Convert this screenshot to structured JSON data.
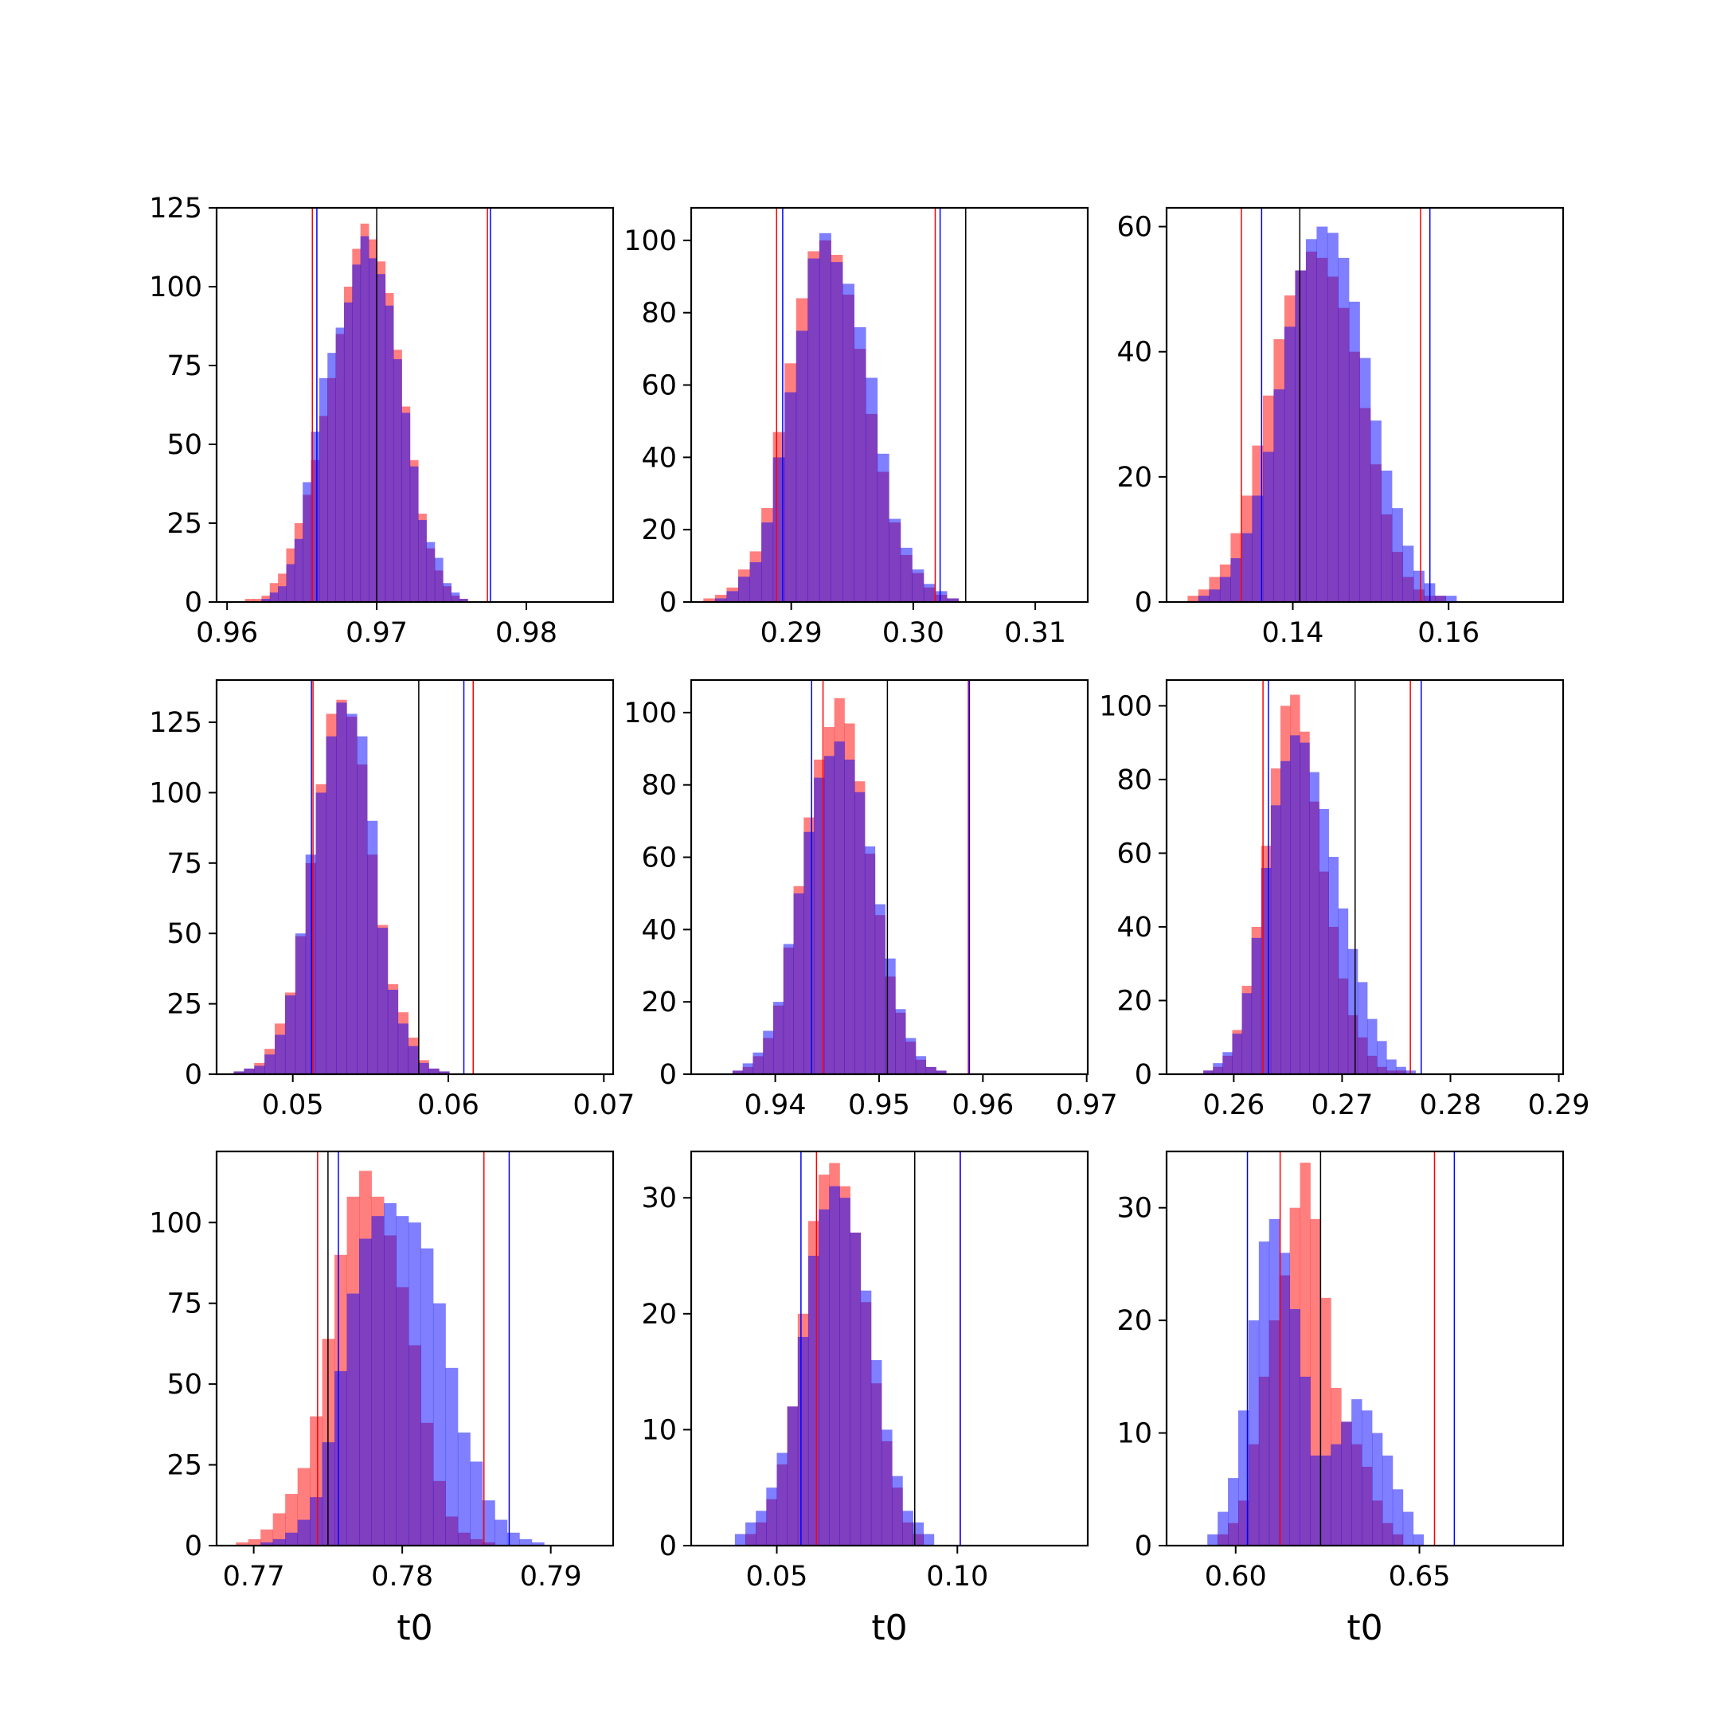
{
  "figure": {
    "background": "#ffffff",
    "colors": {
      "red_series": "#ff0000",
      "blue_series": "#0000ff",
      "overlap_purple": "#7f3fbf",
      "reference_line": "#000000"
    },
    "legend": "none",
    "grid": false
  },
  "chart_data": [
    {
      "type": "bar",
      "panel": "row1-col1",
      "xlabel": "",
      "ylabel": "",
      "xlim": [
        0.9593,
        0.9858
      ],
      "ylim": [
        0,
        125
      ],
      "xticks": [
        0.96,
        0.97,
        0.98
      ],
      "xtick_labels": [
        "0.96",
        "0.97",
        "0.98"
      ],
      "yticks": [
        0,
        25,
        50,
        75,
        100,
        125
      ],
      "ytick_labels": [
        "0",
        "25",
        "50",
        "75",
        "100",
        "125"
      ],
      "bins": {
        "start": 0.9612,
        "width": 0.000551
      },
      "series": [
        {
          "color": "red",
          "values": [
            1,
            1,
            2,
            6,
            9,
            17,
            25,
            34,
            45,
            59,
            71,
            85,
            100,
            112,
            120,
            115,
            108,
            98,
            80,
            62,
            45,
            28,
            17,
            10,
            5,
            2,
            1
          ]
        },
        {
          "color": "blue",
          "values": [
            0,
            0,
            1,
            3,
            5,
            12,
            20,
            38,
            54,
            71,
            79,
            87,
            95,
            107,
            116,
            109,
            104,
            94,
            77,
            60,
            43,
            26,
            19,
            14,
            6,
            3,
            1
          ]
        }
      ],
      "vlines": [
        {
          "color": "red",
          "x": 0.9657
        },
        {
          "color": "blue",
          "x": 0.966
        },
        {
          "color": "black",
          "x": 0.97
        },
        {
          "color": "red",
          "x": 0.9774
        },
        {
          "color": "blue",
          "x": 0.9776
        }
      ]
    },
    {
      "type": "bar",
      "panel": "row1-col2",
      "xlabel": "",
      "ylabel": "",
      "xlim": [
        0.2818,
        0.3143
      ],
      "ylim": [
        0,
        109
      ],
      "xticks": [
        0.29,
        0.3,
        0.31
      ],
      "xtick_labels": [
        "0.29",
        "0.30",
        "0.31"
      ],
      "yticks": [
        0,
        20,
        40,
        60,
        80,
        100
      ],
      "ytick_labels": [
        "0",
        "20",
        "40",
        "60",
        "80",
        "100"
      ],
      "bins": {
        "start": 0.2828,
        "width": 0.00095
      },
      "series": [
        {
          "color": "red",
          "values": [
            1,
            2,
            4,
            9,
            14,
            26,
            47,
            66,
            84,
            97,
            100,
            96,
            85,
            70,
            52,
            36,
            22,
            13,
            8,
            4,
            2,
            1,
            0
          ]
        },
        {
          "color": "blue",
          "values": [
            0,
            1,
            3,
            7,
            11,
            22,
            40,
            58,
            75,
            95,
            102,
            94,
            88,
            76,
            62,
            41,
            23,
            15,
            9,
            5,
            3,
            1,
            0
          ]
        }
      ],
      "vlines": [
        {
          "color": "red",
          "x": 0.2888
        },
        {
          "color": "blue",
          "x": 0.2893
        },
        {
          "color": "red",
          "x": 0.3018
        },
        {
          "color": "blue",
          "x": 0.3022
        },
        {
          "color": "black",
          "x": 0.3043
        }
      ]
    },
    {
      "type": "bar",
      "panel": "row1-col3",
      "xlabel": "",
      "ylabel": "",
      "xlim": [
        0.1238,
        0.1747
      ],
      "ylim": [
        0,
        63
      ],
      "xticks": [
        0.14,
        0.16
      ],
      "xtick_labels": [
        "0.14",
        "0.16"
      ],
      "yticks": [
        0,
        20,
        40,
        60
      ],
      "ytick_labels": [
        "0",
        "20",
        "40",
        "60"
      ],
      "bins": {
        "start": 0.1265,
        "width": 0.00138
      },
      "series": [
        {
          "color": "red",
          "values": [
            1,
            2,
            4,
            6,
            11,
            17,
            25,
            33,
            42,
            49,
            53,
            56,
            55,
            52,
            47,
            40,
            31,
            22,
            14,
            8,
            4,
            2,
            1,
            1,
            0,
            0,
            0
          ]
        },
        {
          "color": "blue",
          "values": [
            0,
            1,
            2,
            4,
            7,
            11,
            17,
            24,
            34,
            44,
            53,
            58,
            60,
            59,
            55,
            48,
            39,
            29,
            21,
            15,
            9,
            5,
            3,
            1,
            1,
            0,
            0
          ]
        }
      ],
      "vlines": [
        {
          "color": "red",
          "x": 0.1334
        },
        {
          "color": "blue",
          "x": 0.136
        },
        {
          "color": "black",
          "x": 0.1409
        },
        {
          "color": "red",
          "x": 0.1564
        },
        {
          "color": "blue",
          "x": 0.1576
        }
      ]
    },
    {
      "type": "bar",
      "panel": "row2-col1",
      "xlabel": "",
      "ylabel": "",
      "xlim": [
        0.0451,
        0.0706
      ],
      "ylim": [
        0,
        140
      ],
      "xticks": [
        0.05,
        0.06,
        0.07
      ],
      "xtick_labels": [
        "0.05",
        "0.06",
        "0.07"
      ],
      "yticks": [
        0,
        25,
        50,
        75,
        100,
        125
      ],
      "ytick_labels": [
        "0",
        "25",
        "50",
        "75",
        "100",
        "125"
      ],
      "bins": {
        "start": 0.0462,
        "width": 0.00066
      },
      "series": [
        {
          "color": "red",
          "values": [
            1,
            2,
            4,
            9,
            18,
            29,
            49,
            75,
            103,
            128,
            133,
            127,
            110,
            78,
            53,
            32,
            22,
            13,
            5,
            2,
            1,
            0
          ]
        },
        {
          "color": "blue",
          "values": [
            1,
            2,
            3,
            7,
            14,
            28,
            50,
            78,
            100,
            120,
            132,
            128,
            120,
            90,
            52,
            30,
            18,
            10,
            4,
            2,
            1,
            0
          ]
        }
      ],
      "vlines": [
        {
          "color": "red",
          "x": 0.0513
        },
        {
          "color": "blue",
          "x": 0.0512
        },
        {
          "color": "black",
          "x": 0.0581
        },
        {
          "color": "blue",
          "x": 0.061
        },
        {
          "color": "red",
          "x": 0.0616
        }
      ]
    },
    {
      "type": "bar",
      "panel": "row2-col2",
      "xlabel": "",
      "ylabel": "",
      "xlim": [
        0.9319,
        0.9701
      ],
      "ylim": [
        0,
        109
      ],
      "xticks": [
        0.94,
        0.95,
        0.96,
        0.97
      ],
      "xtick_labels": [
        "0.94",
        "0.95",
        "0.96",
        "0.97"
      ],
      "yticks": [
        0,
        20,
        40,
        60,
        80,
        100
      ],
      "ytick_labels": [
        "0",
        "20",
        "40",
        "60",
        "80",
        "100"
      ],
      "bins": {
        "start": 0.9349,
        "width": 0.00098
      },
      "series": [
        {
          "color": "red",
          "values": [
            0,
            1,
            2,
            5,
            10,
            19,
            35,
            52,
            71,
            87,
            96,
            104,
            97,
            81,
            61,
            44,
            27,
            17,
            9,
            4,
            2,
            1,
            0
          ]
        },
        {
          "color": "blue",
          "values": [
            0,
            1,
            3,
            6,
            12,
            20,
            36,
            50,
            67,
            82,
            88,
            92,
            87,
            78,
            63,
            47,
            32,
            18,
            10,
            5,
            2,
            1,
            0
          ]
        }
      ],
      "vlines": [
        {
          "color": "blue",
          "x": 0.9435
        },
        {
          "color": "red",
          "x": 0.9446
        },
        {
          "color": "black",
          "x": 0.9508
        },
        {
          "color": "red",
          "x": 0.9586
        },
        {
          "color": "blue",
          "x": 0.9587
        }
      ]
    },
    {
      "type": "bar",
      "panel": "row2-col3",
      "xlabel": "",
      "ylabel": "",
      "xlim": [
        0.2538,
        0.2904
      ],
      "ylim": [
        0,
        107
      ],
      "xticks": [
        0.26,
        0.27,
        0.28,
        0.29
      ],
      "xtick_labels": [
        "0.26",
        "0.27",
        "0.28",
        "0.29"
      ],
      "yticks": [
        0,
        20,
        40,
        60,
        80,
        100
      ],
      "ytick_labels": [
        "0",
        "20",
        "40",
        "60",
        "80",
        "100"
      ],
      "bins": {
        "start": 0.2563,
        "width": 0.00089
      },
      "series": [
        {
          "color": "red",
          "values": [
            0,
            1,
            2,
            5,
            12,
            24,
            40,
            62,
            83,
            100,
            103,
            93,
            74,
            55,
            40,
            26,
            16,
            10,
            5,
            2,
            1,
            1,
            0
          ]
        },
        {
          "color": "blue",
          "values": [
            0,
            1,
            3,
            6,
            11,
            22,
            37,
            56,
            73,
            85,
            92,
            90,
            82,
            72,
            59,
            45,
            34,
            25,
            15,
            9,
            4,
            2,
            1
          ]
        }
      ],
      "vlines": [
        {
          "color": "red",
          "x": 0.2627
        },
        {
          "color": "blue",
          "x": 0.2632
        },
        {
          "color": "black",
          "x": 0.2712
        },
        {
          "color": "red",
          "x": 0.2763
        },
        {
          "color": "blue",
          "x": 0.2773
        }
      ]
    },
    {
      "type": "bar",
      "panel": "row3-col1",
      "xlabel": "t0",
      "ylabel": "",
      "xlim": [
        0.7675,
        0.7942
      ],
      "ylim": [
        0,
        122
      ],
      "xticks": [
        0.77,
        0.78,
        0.79
      ],
      "xtick_labels": [
        "0.77",
        "0.78",
        "0.79"
      ],
      "yticks": [
        0,
        25,
        50,
        75,
        100
      ],
      "ytick_labels": [
        "0",
        "25",
        "50",
        "75",
        "100"
      ],
      "bins": {
        "start": 0.7688,
        "width": 0.00083
      },
      "series": [
        {
          "color": "red",
          "values": [
            1,
            2,
            5,
            10,
            16,
            24,
            40,
            64,
            90,
            108,
            116,
            108,
            96,
            80,
            62,
            38,
            20,
            9,
            4,
            2,
            1,
            0,
            0,
            0,
            0,
            0
          ]
        },
        {
          "color": "blue",
          "values": [
            0,
            0,
            1,
            2,
            4,
            8,
            15,
            32,
            54,
            78,
            95,
            102,
            106,
            102,
            100,
            92,
            75,
            55,
            35,
            26,
            14,
            8,
            4,
            2,
            1,
            0
          ]
        }
      ],
      "vlines": [
        {
          "color": "red",
          "x": 0.7743
        },
        {
          "color": "black",
          "x": 0.775
        },
        {
          "color": "blue",
          "x": 0.7757
        },
        {
          "color": "red",
          "x": 0.7855
        },
        {
          "color": "blue",
          "x": 0.7872
        }
      ]
    },
    {
      "type": "bar",
      "panel": "row3-col2",
      "xlabel": "t0",
      "ylabel": "",
      "xlim": [
        0.0263,
        0.1361
      ],
      "ylim": [
        0,
        34
      ],
      "xticks": [
        0.05,
        0.1
      ],
      "xtick_labels": [
        "0.05",
        "0.10"
      ],
      "yticks": [
        0,
        10,
        20,
        30
      ],
      "ytick_labels": [
        "0",
        "10",
        "20",
        "30"
      ],
      "bins": {
        "start": 0.0355,
        "width": 0.0029
      },
      "series": [
        {
          "color": "red",
          "values": [
            0,
            0,
            1,
            2,
            4,
            7,
            12,
            20,
            28,
            32,
            33,
            31,
            27,
            21,
            14,
            9,
            5,
            2,
            1,
            0,
            0,
            0
          ]
        },
        {
          "color": "blue",
          "values": [
            0,
            1,
            2,
            3,
            5,
            8,
            12,
            18,
            25,
            29,
            31,
            30,
            27,
            22,
            16,
            10,
            6,
            3,
            2,
            1,
            0,
            0
          ]
        }
      ],
      "vlines": [
        {
          "color": "blue",
          "x": 0.0567
        },
        {
          "color": "red",
          "x": 0.061
        },
        {
          "color": "black",
          "x": 0.0882
        },
        {
          "color": "red",
          "x": 0.1008
        },
        {
          "color": "blue",
          "x": 0.1008
        }
      ]
    },
    {
      "type": "bar",
      "panel": "row3-col3",
      "xlabel": "t0",
      "ylabel": "",
      "xlim": [
        0.5812,
        0.6891
      ],
      "ylim": [
        0,
        35
      ],
      "xticks": [
        0.6,
        0.65
      ],
      "xtick_labels": [
        "0.60",
        "0.65"
      ],
      "yticks": [
        0,
        10,
        20,
        30
      ],
      "ytick_labels": [
        "0",
        "10",
        "20",
        "30"
      ],
      "bins": {
        "start": 0.5895,
        "width": 0.0028
      },
      "series": [
        {
          "color": "red",
          "values": [
            0,
            0,
            1,
            2,
            4,
            9,
            15,
            20,
            24,
            30,
            34,
            29,
            22,
            14,
            11,
            9,
            7,
            4,
            2,
            1,
            0,
            0,
            0,
            0,
            0,
            0,
            0,
            0,
            0,
            0
          ]
        },
        {
          "color": "blue",
          "values": [
            0,
            1,
            3,
            6,
            12,
            20,
            27,
            29,
            26,
            21,
            15,
            8,
            8,
            9,
            11,
            13,
            12,
            10,
            8,
            5,
            3,
            1,
            0,
            0,
            0,
            0,
            0,
            0,
            0,
            0
          ]
        }
      ],
      "vlines": [
        {
          "color": "blue",
          "x": 0.6032
        },
        {
          "color": "red",
          "x": 0.6121
        },
        {
          "color": "black",
          "x": 0.6231
        },
        {
          "color": "red",
          "x": 0.6541
        },
        {
          "color": "blue",
          "x": 0.6595
        }
      ]
    }
  ]
}
